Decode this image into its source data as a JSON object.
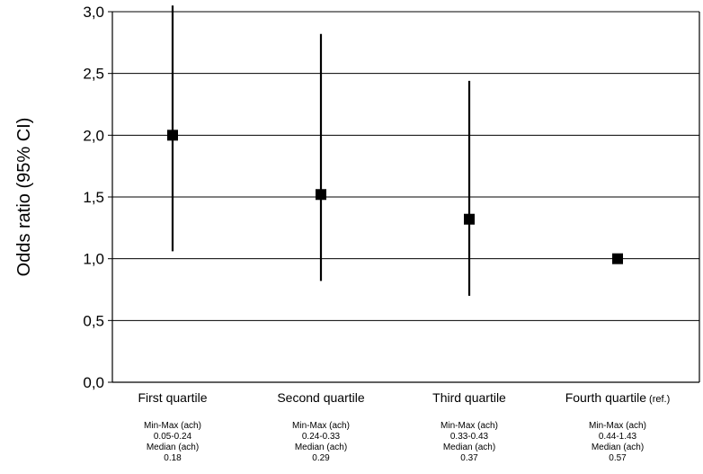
{
  "chart_data": {
    "type": "scatter",
    "ylabel": "Odds ratio (95% CI)",
    "ylim": [
      0,
      3.0
    ],
    "yticks": [
      "0,0",
      "0,5",
      "1,0",
      "1,5",
      "2,0",
      "2,5",
      "3,0"
    ],
    "grid": true,
    "categories": [
      {
        "label": "First quartile",
        "suffix": "",
        "or": 2.0,
        "ci_low": 1.06,
        "ci_high": 3.05,
        "notes": [
          "Min-Max (ach)",
          "0.05-0.24",
          "Median (ach)",
          "0.18"
        ]
      },
      {
        "label": "Second quartile",
        "suffix": "",
        "or": 1.52,
        "ci_low": 0.82,
        "ci_high": 2.82,
        "notes": [
          "Min-Max (ach)",
          "0.24-0.33",
          "Median (ach)",
          "0.29"
        ]
      },
      {
        "label": "Third quartile",
        "suffix": "",
        "or": 1.32,
        "ci_low": 0.7,
        "ci_high": 2.44,
        "notes": [
          "Min-Max (ach)",
          "0.33-0.43",
          "Median (ach)",
          "0.37"
        ]
      },
      {
        "label": "Fourth quartile",
        "suffix": "(ref.)",
        "or": 1.0,
        "ci_low": null,
        "ci_high": null,
        "notes": [
          "Min-Max (ach)",
          "0.44-1.43",
          "Median (ach)",
          "0.57"
        ]
      }
    ],
    "marker_color": "#000000",
    "line_color": "#000000"
  }
}
